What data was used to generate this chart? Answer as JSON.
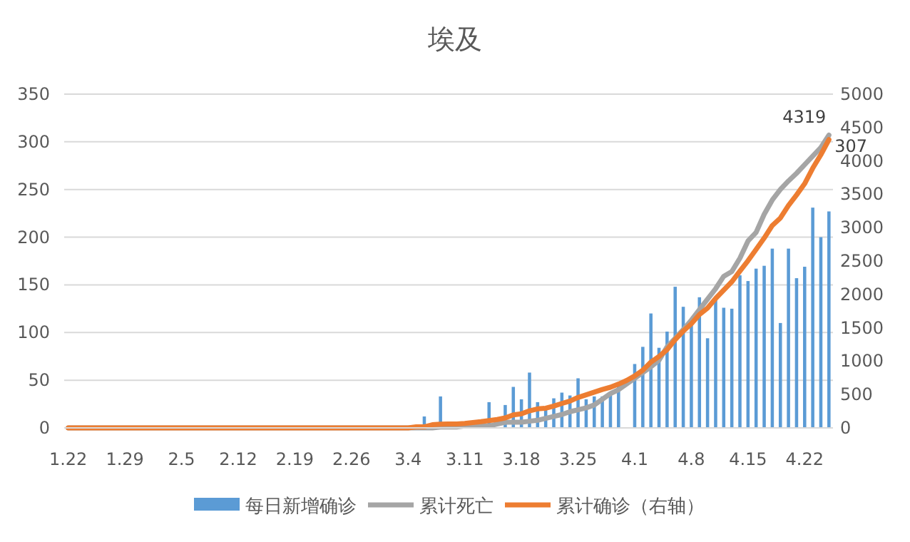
{
  "chart_data": {
    "type": "bar",
    "title": "埃及",
    "categories": [
      "1.22",
      null,
      null,
      null,
      null,
      null,
      null,
      "1.29",
      null,
      null,
      null,
      null,
      null,
      null,
      "2.5",
      null,
      null,
      null,
      null,
      null,
      null,
      "2.12",
      null,
      null,
      null,
      null,
      null,
      null,
      "2.19",
      null,
      null,
      null,
      null,
      null,
      null,
      "2.26",
      null,
      null,
      null,
      null,
      null,
      null,
      "3.4",
      null,
      null,
      null,
      null,
      null,
      null,
      "3.11",
      null,
      null,
      null,
      null,
      null,
      null,
      "3.18",
      null,
      null,
      null,
      null,
      null,
      null,
      "3.25",
      null,
      null,
      null,
      null,
      null,
      null,
      "4.1",
      null,
      null,
      null,
      null,
      null,
      null,
      "4.8",
      null,
      null,
      null,
      null,
      null,
      null,
      "4.15",
      null,
      null,
      null,
      null,
      null,
      null,
      "4.22",
      null,
      null,
      null
    ],
    "series": [
      {
        "name": "每日新增确诊",
        "color": "#5b9bd5",
        "values": [
          0,
          0,
          0,
          0,
          0,
          0,
          0,
          0,
          0,
          0,
          0,
          0,
          0,
          0,
          0,
          0,
          0,
          0,
          0,
          0,
          0,
          0,
          0,
          0,
          0,
          0,
          0,
          0,
          0,
          0,
          0,
          0,
          0,
          0,
          0,
          0,
          0,
          0,
          0,
          0,
          0,
          0,
          0,
          0,
          12,
          0,
          33,
          0,
          null,
          0,
          0,
          null,
          27,
          0,
          24,
          43,
          30,
          58,
          27,
          20,
          31,
          37,
          34,
          52,
          30,
          33,
          33,
          35,
          45,
          null,
          67,
          85,
          120,
          84,
          101,
          148,
          127,
          112,
          137,
          94,
          134,
          126,
          125,
          160,
          154,
          167,
          170,
          188,
          110,
          188,
          157,
          169,
          231,
          200,
          227
        ]
      },
      {
        "name": "累计死亡",
        "type": "line",
        "color": "#a5a5a5",
        "values": [
          0,
          0,
          0,
          0,
          0,
          0,
          0,
          0,
          0,
          0,
          0,
          0,
          0,
          0,
          0,
          0,
          0,
          0,
          0,
          0,
          0,
          0,
          0,
          0,
          0,
          0,
          0,
          0,
          0,
          0,
          0,
          0,
          0,
          0,
          0,
          0,
          0,
          0,
          0,
          0,
          0,
          0,
          0,
          0,
          0,
          0,
          1,
          1,
          1,
          2,
          2,
          2,
          2,
          4,
          6,
          6,
          6,
          7,
          8,
          10,
          12,
          14,
          17,
          19,
          21,
          24,
          30,
          36,
          40,
          46,
          52,
          58,
          64,
          71,
          85,
          94,
          103,
          113,
          124,
          135,
          146,
          159,
          164,
          178,
          196,
          205,
          224,
          239,
          250,
          259,
          267,
          276,
          285,
          294,
          307
        ],
        "value_labels": [
          null,
          null,
          null,
          null,
          null,
          null,
          null,
          null,
          null,
          null,
          null,
          null,
          null,
          null,
          null,
          null,
          null,
          null,
          null,
          null,
          null,
          null,
          null,
          null,
          null,
          null,
          null,
          null,
          null,
          null,
          null,
          null,
          null,
          null,
          null,
          null,
          null,
          null,
          null,
          null,
          null,
          null,
          null,
          null,
          null,
          null,
          null,
          null,
          null,
          null,
          null,
          null,
          null,
          null,
          null,
          null,
          null,
          null,
          null,
          null,
          null,
          null,
          null,
          null,
          null,
          null,
          null,
          null,
          null,
          null,
          null,
          null,
          null,
          null,
          null,
          null,
          null,
          null,
          null,
          null,
          null,
          null,
          null,
          null,
          null,
          null,
          null,
          null,
          null,
          null,
          null,
          null,
          null,
          null,
          "307"
        ]
      },
      {
        "name": "累计确诊（右轴）",
        "type": "line",
        "axis": "y2",
        "color": "#ed7d31",
        "values": [
          0,
          0,
          0,
          0,
          0,
          0,
          0,
          0,
          0,
          0,
          0,
          0,
          0,
          0,
          0,
          0,
          0,
          0,
          0,
          0,
          0,
          0,
          0,
          0,
          0,
          0,
          0,
          0,
          0,
          0,
          0,
          0,
          0,
          0,
          0,
          0,
          0,
          0,
          0,
          0,
          0,
          0,
          0,
          15,
          15,
          48,
          55,
          59,
          60,
          67,
          80,
          93,
          110,
          126,
          150,
          196,
          210,
          256,
          285,
          294,
          327,
          366,
          402,
          456,
          495,
          536,
          576,
          609,
          656,
          710,
          779,
          865,
          985,
          1070,
          1173,
          1322,
          1450,
          1560,
          1699,
          1794,
          1939,
          2065,
          2190,
          2350,
          2505,
          2673,
          2844,
          3032,
          3144,
          3333,
          3490,
          3659,
          3891,
          4092,
          4319
        ],
        "value_labels": [
          null,
          null,
          null,
          null,
          null,
          null,
          null,
          null,
          null,
          null,
          null,
          null,
          null,
          null,
          null,
          null,
          null,
          null,
          null,
          null,
          null,
          null,
          null,
          null,
          null,
          null,
          null,
          null,
          null,
          null,
          null,
          null,
          null,
          null,
          null,
          null,
          null,
          null,
          null,
          null,
          null,
          null,
          null,
          null,
          null,
          null,
          null,
          null,
          null,
          null,
          null,
          null,
          null,
          null,
          null,
          null,
          null,
          null,
          null,
          null,
          null,
          null,
          null,
          null,
          null,
          null,
          null,
          null,
          null,
          null,
          null,
          null,
          null,
          null,
          null,
          null,
          null,
          null,
          null,
          null,
          null,
          null,
          null,
          null,
          null,
          null,
          null,
          null,
          null,
          null,
          null,
          null,
          null,
          null,
          "4319"
        ]
      }
    ],
    "ylim": [
      0,
      350
    ],
    "yticks": [
      0,
      50,
      100,
      150,
      200,
      250,
      300,
      350
    ],
    "y2lim": [
      0,
      5000
    ],
    "y2ticks": [
      0,
      500,
      1000,
      1500,
      2000,
      2500,
      3000,
      3500,
      4000,
      4500,
      5000
    ],
    "grid": "y",
    "legend": "bottom",
    "marker": "none",
    "line_style": "solid"
  }
}
